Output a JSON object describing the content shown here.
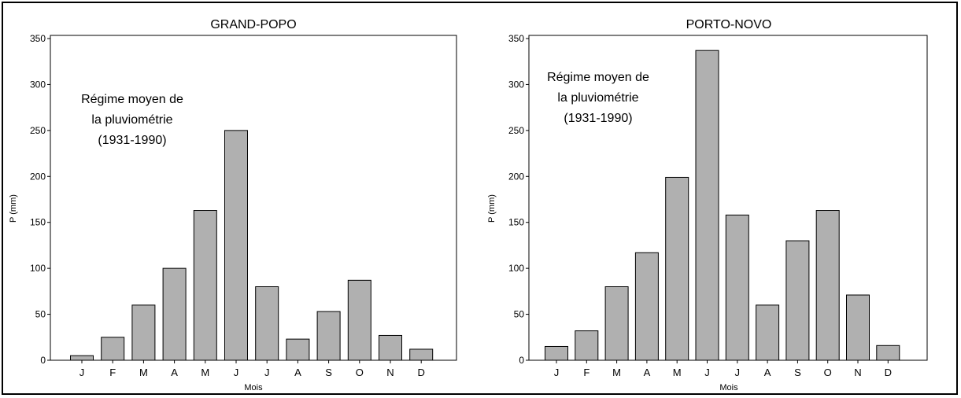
{
  "chart_data": [
    {
      "type": "bar",
      "title": "GRAND-POPO",
      "xlabel": "Mois",
      "ylabel": "P (mm)",
      "categories": [
        "J",
        "F",
        "M",
        "A",
        "M",
        "J",
        "J",
        "A",
        "S",
        "O",
        "N",
        "D"
      ],
      "values": [
        5,
        25,
        60,
        100,
        163,
        250,
        80,
        23,
        53,
        87,
        27,
        12
      ],
      "ylim": [
        0,
        350
      ],
      "yticks": [
        "0",
        "50",
        "100",
        "150",
        "200",
        "250",
        "300",
        "350"
      ],
      "annotation": [
        "Régime moyen de",
        "la pluviométrie",
        "(1931-1990)"
      ],
      "bar_color": "#b0b0b0"
    },
    {
      "type": "bar",
      "title": "PORTO-NOVO",
      "xlabel": "Mois",
      "ylabel": "P (mm)",
      "categories": [
        "J",
        "F",
        "M",
        "A",
        "M",
        "J",
        "J",
        "A",
        "S",
        "O",
        "N",
        "D"
      ],
      "values": [
        15,
        32,
        80,
        117,
        199,
        337,
        158,
        60,
        130,
        163,
        71,
        16
      ],
      "ylim": [
        0,
        350
      ],
      "yticks": [
        "0",
        "50",
        "100",
        "150",
        "200",
        "250",
        "300",
        "350"
      ],
      "annotation": [
        "Régime moyen de",
        "la pluviométrie",
        "(1931-1990)"
      ],
      "bar_color": "#b0b0b0"
    }
  ]
}
